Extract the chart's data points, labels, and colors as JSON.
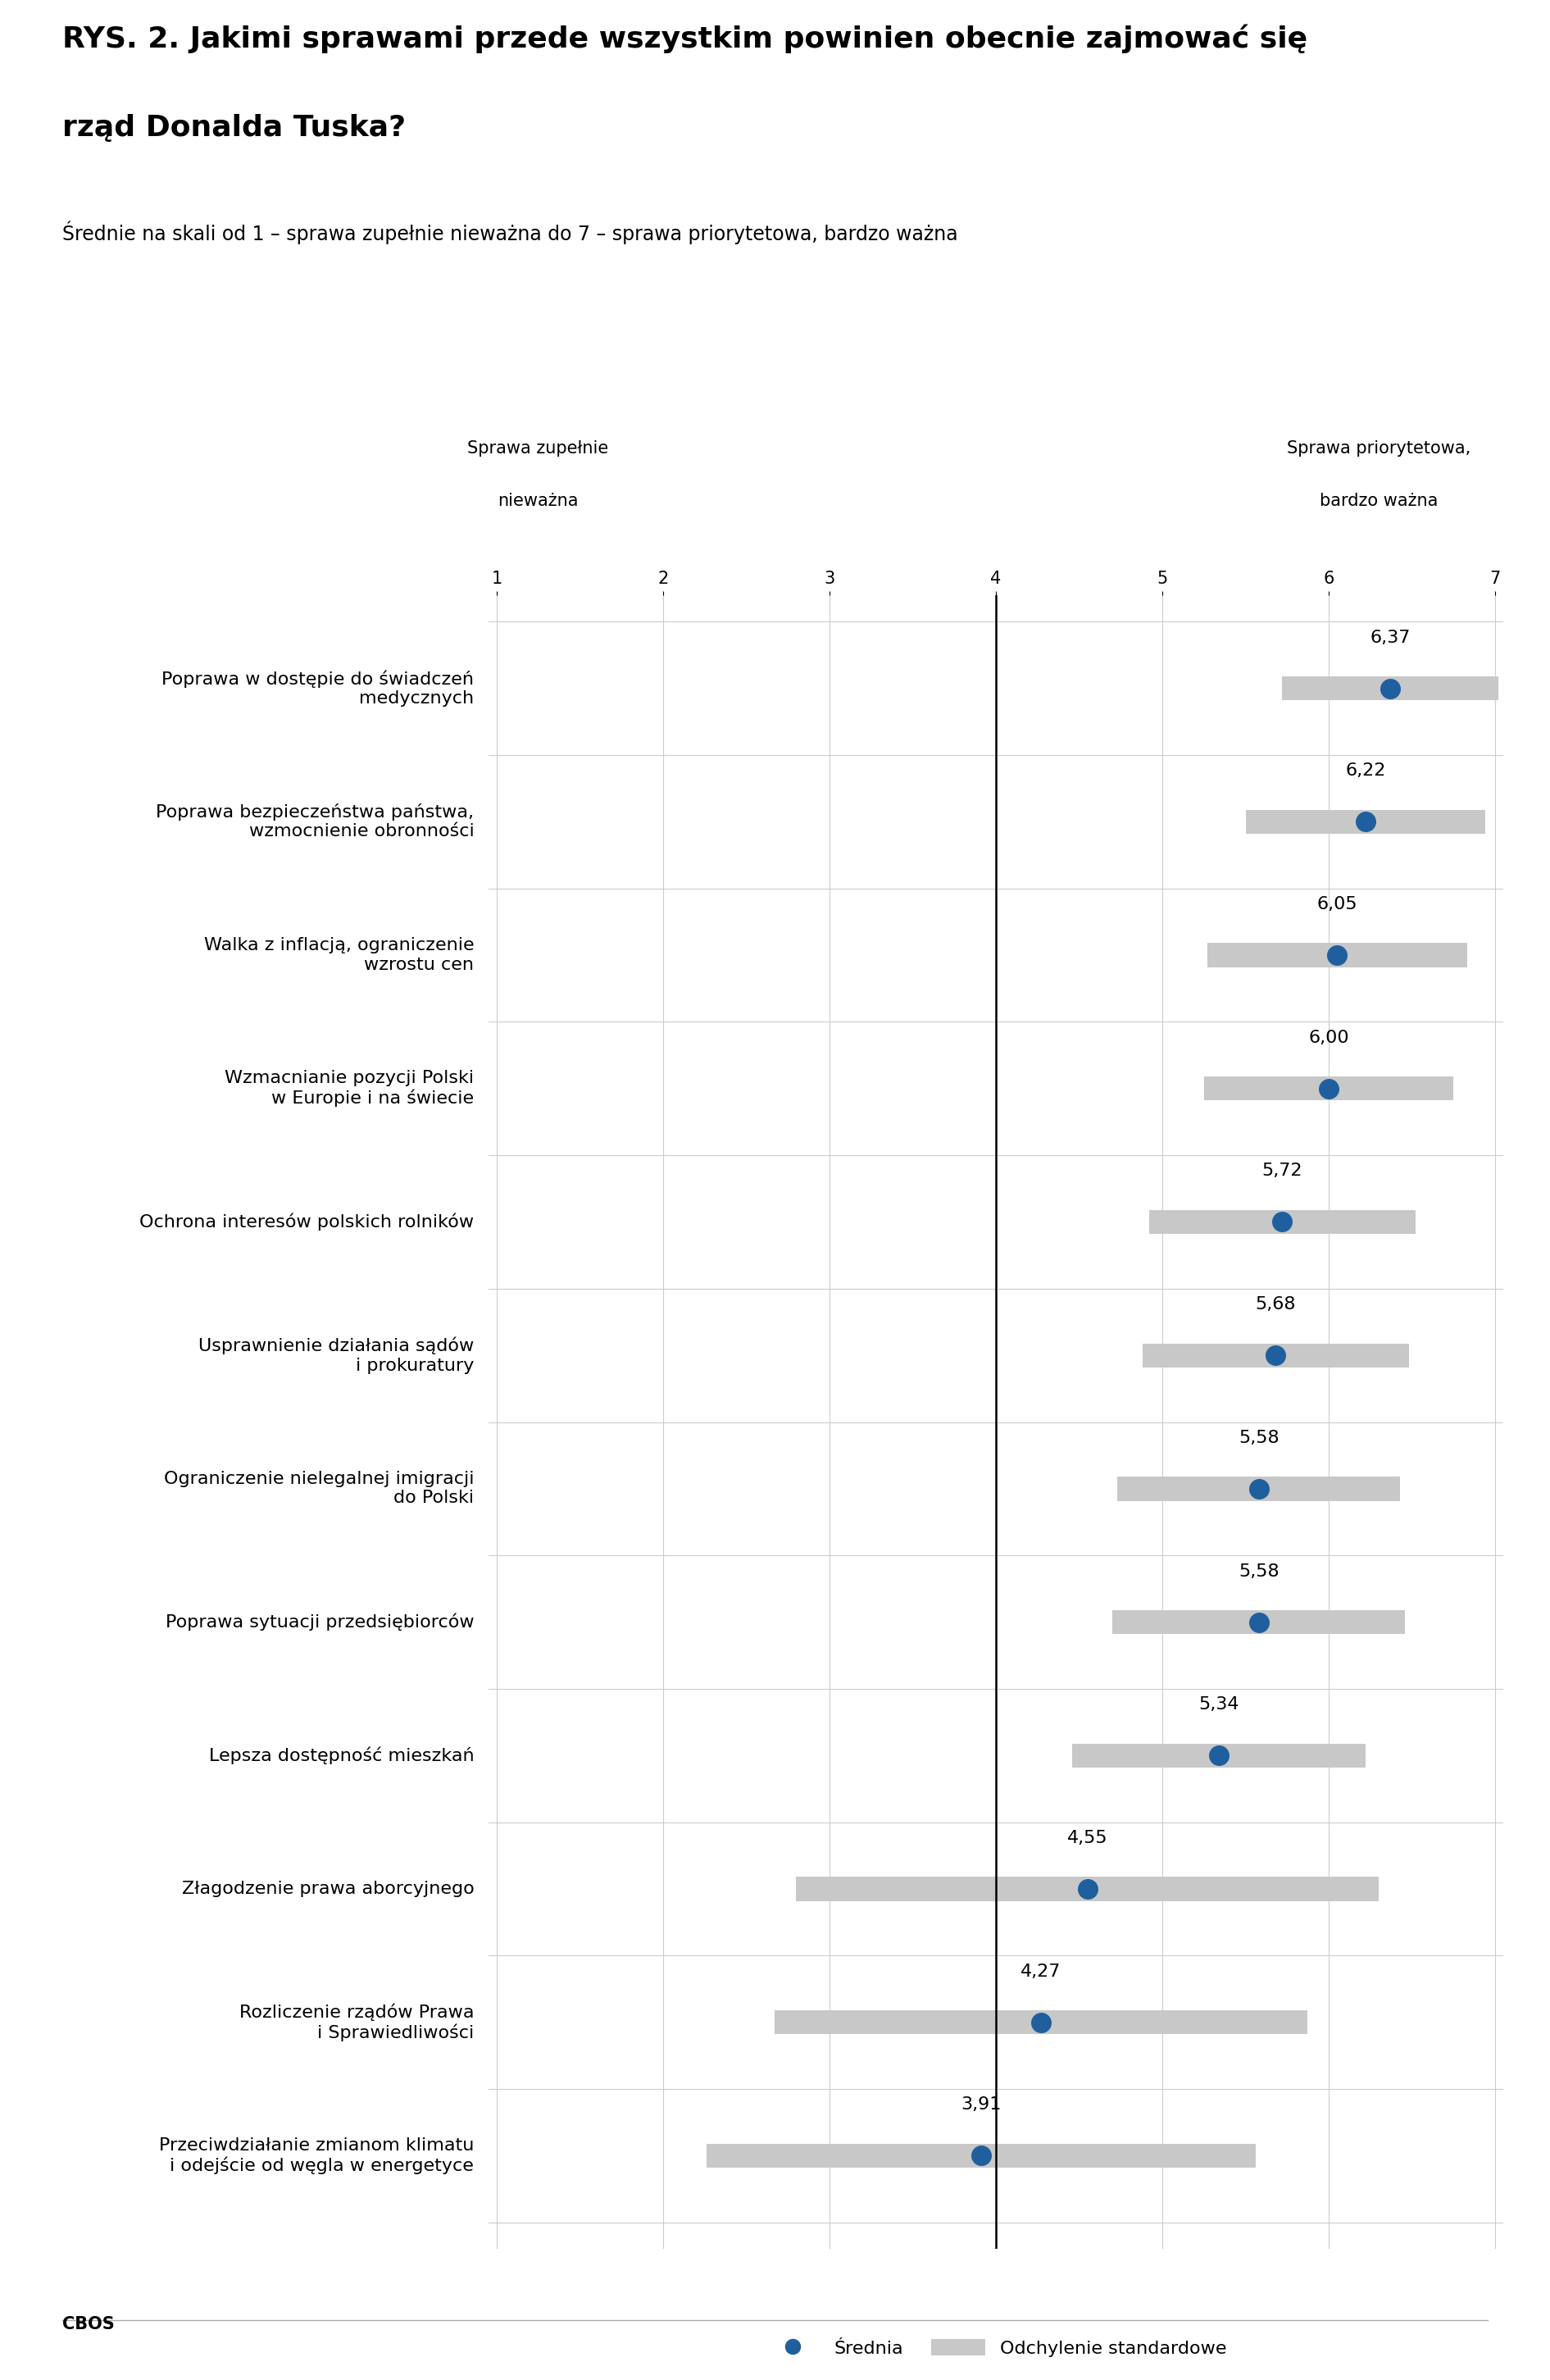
{
  "title_line1": "RYS. 2. Jakimi sprawami przede wszystkim powinien obecnie zajmować się",
  "title_line2": "rząd Donalda Tuska?",
  "subtitle": "Średnie na skali od 1 – sprawa zupełnie nieważna do 7 – sprawa priorytetowa, bardzo ważna",
  "left_label_line1": "Sprawa zupełnie",
  "left_label_line2": "nieważna",
  "right_label_line1": "Sprawa priorytetowa,",
  "right_label_line2": "bardzo ważna",
  "categories": [
    "Poprawa w dostępie do świadczeń\nmedycznych",
    "Poprawa bezpieczeństwa państwa,\nwzmocnienie obronności",
    "Walka z inflacją, ograniczenie\nwzrostu cen",
    "Wzmacnianie pozycji Polski\nw Europie i na świecie",
    "Ochrona interesów polskich rolników",
    "Usprawnienie działania sądów\ni prokuratury",
    "Ograniczenie nielegalnej imigracji\ndo Polski",
    "Poprawa sytuacji przedsiębiorców",
    "Lepsza dostępność mieszkań",
    "Złagodzenie prawa aborcyjnego",
    "Rozliczenie rządów Prawa\ni Sprawiedliwości",
    "Przeciwdziałanie zmianom klimatu\ni odejście od węgla w energetyce"
  ],
  "means": [
    6.37,
    6.22,
    6.05,
    6.0,
    5.72,
    5.68,
    5.58,
    5.58,
    5.34,
    4.55,
    4.27,
    3.91
  ],
  "std_devs": [
    0.65,
    0.72,
    0.78,
    0.75,
    0.8,
    0.8,
    0.85,
    0.88,
    0.88,
    1.75,
    1.6,
    1.65
  ],
  "dot_color": "#1f5f9e",
  "std_color": "#c8c8c8",
  "vline_x": 4,
  "xmin": 1,
  "xmax": 7,
  "xticks": [
    1,
    2,
    3,
    4,
    5,
    6,
    7
  ],
  "legend_dot_label": "Średnia",
  "legend_std_label": "Odchylenie standardowe",
  "footer_text": "CBOS",
  "background_color": "#ffffff",
  "title_fontsize": 26,
  "subtitle_fontsize": 17,
  "category_fontsize": 16,
  "value_fontsize": 16,
  "tick_fontsize": 15,
  "header_label_fontsize": 15
}
